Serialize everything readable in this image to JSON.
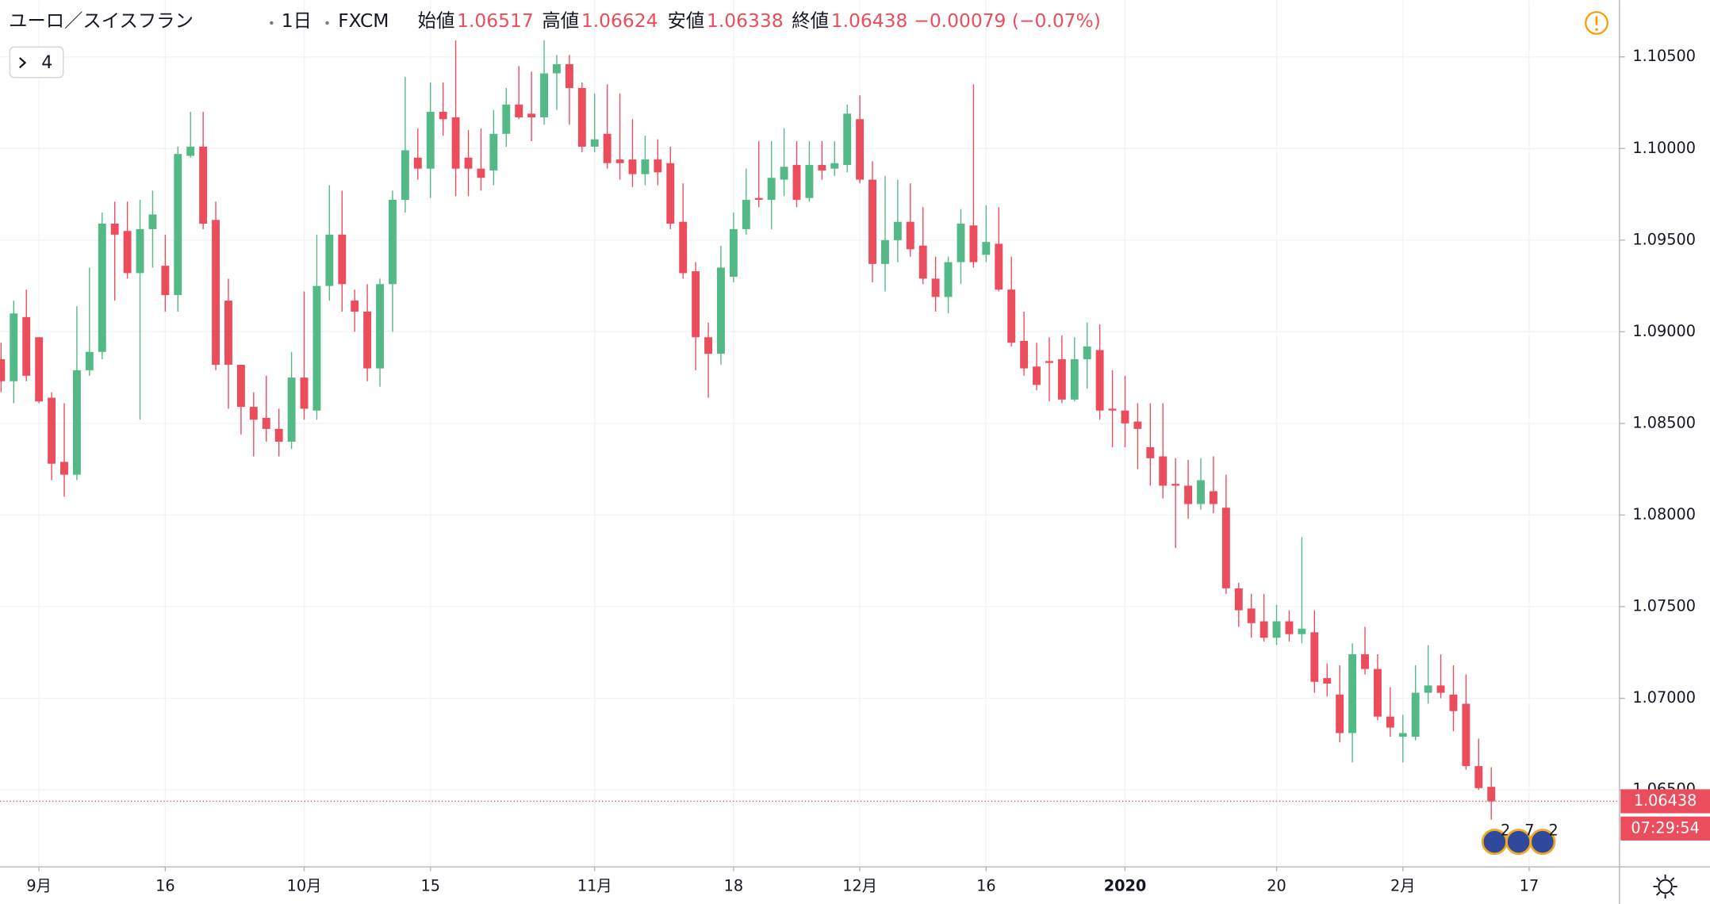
{
  "chart_data": {
    "type": "candlestick",
    "symbol": "ユーロ／スイスフラン",
    "interval": "1日",
    "source": "FXCM",
    "ohlc_labels": [
      "始値",
      "高値",
      "安値",
      "終値"
    ],
    "change_label": "−0.00079 (−0.07%)",
    "indicators_count": 4,
    "countdown": "07:29:54",
    "events": [
      "2",
      "7",
      "2"
    ],
    "up_color": "#53b987",
    "down_color": "#eb4d5c",
    "grid": true,
    "ylim": [
      1.0608,
      1.1081
    ],
    "yticks": [
      {
        "value": 1.105,
        "label": "1.10500"
      },
      {
        "value": 1.1,
        "label": "1.10000"
      },
      {
        "value": 1.095,
        "label": "1.09500"
      },
      {
        "value": 1.09,
        "label": "1.09000"
      },
      {
        "value": 1.085,
        "label": "1.08500"
      },
      {
        "value": 1.08,
        "label": "1.08000"
      },
      {
        "value": 1.075,
        "label": "1.07500"
      },
      {
        "value": 1.07,
        "label": "1.07000"
      },
      {
        "value": 1.065,
        "label": "1.06500"
      }
    ],
    "categories": [
      null,
      null,
      null,
      "9月",
      null,
      null,
      null,
      null,
      null,
      null,
      null,
      null,
      null,
      "16",
      null,
      null,
      null,
      null,
      null,
      null,
      null,
      null,
      null,
      null,
      "10月",
      null,
      null,
      null,
      null,
      null,
      null,
      null,
      null,
      null,
      "15",
      null,
      null,
      null,
      null,
      null,
      null,
      null,
      null,
      null,
      null,
      null,
      null,
      "11月",
      null,
      null,
      null,
      null,
      null,
      null,
      null,
      null,
      null,
      null,
      "18",
      null,
      null,
      null,
      null,
      null,
      null,
      null,
      null,
      null,
      "12月",
      null,
      null,
      null,
      null,
      null,
      null,
      null,
      null,
      null,
      "16",
      null,
      null,
      null,
      null,
      null,
      null,
      null,
      null,
      null,
      null,
      "2020",
      null,
      null,
      null,
      null,
      null,
      null,
      null,
      null,
      null,
      null,
      null,
      "20",
      null,
      null,
      null,
      null,
      null,
      null,
      null,
      null,
      null,
      "2月",
      null,
      null,
      null,
      null,
      null,
      null,
      null,
      null,
      null,
      "17",
      null,
      null,
      null,
      null,
      null,
      null,
      null
    ],
    "open": [
      1.0885,
      1.0873,
      1.0908,
      1.0897,
      1.0864,
      1.0829,
      1.0822,
      1.0879,
      1.0889,
      1.0959,
      1.0955,
      1.0932,
      1.0956,
      1.0936,
      1.092,
      1.0996,
      1.1001,
      1.0961,
      1.0917,
      1.0882,
      1.0859,
      1.0853,
      1.0847,
      1.084,
      1.0875,
      1.0857,
      1.0925,
      1.0953,
      1.0917,
      1.0911,
      1.088,
      1.0926,
      1.0972,
      1.0995,
      1.0989,
      1.102,
      1.1017,
      1.0995,
      1.0989,
      1.0988,
      1.1008,
      1.1024,
      1.1019,
      1.1017,
      1.1041,
      1.1046,
      1.1033,
      1.1001,
      1.1008,
      1.0994,
      1.0994,
      1.0986,
      1.0994,
      1.0992,
      1.096,
      1.0933,
      1.0897,
      1.0888,
      1.093,
      1.0956,
      1.0973,
      1.0972,
      1.0983,
      1.0991,
      1.0973,
      1.0991,
      1.0989,
      1.0991,
      1.1016,
      1.0983,
      1.0937,
      1.095,
      1.096,
      1.0947,
      1.0929,
      1.0919,
      1.0938,
      1.0958,
      1.0942,
      1.0948,
      1.0923,
      1.0895,
      1.0881,
      1.0884,
      1.0885,
      1.0863,
      1.0885,
      1.089,
      1.0858,
      1.0857,
      1.0851,
      1.0837,
      1.0832,
      1.0817,
      1.0816,
      1.0806,
      1.0813,
      1.0804,
      1.076,
      1.0749,
      1.0742,
      1.0733,
      1.0742,
      1.0735,
      1.0736,
      1.0711,
      1.0702,
      1.0681,
      1.0724,
      1.0716,
      1.069,
      1.0679,
      1.0679,
      1.0703,
      1.0707,
      1.0702,
      1.0697,
      1.0663,
      1.06517,
      null,
      null,
      null,
      null,
      null,
      null,
      null,
      null,
      null,
      null
    ],
    "high": [
      1.0894,
      1.0917,
      1.0923,
      1.0897,
      1.0867,
      1.0861,
      1.0914,
      1.0935,
      1.0965,
      1.0971,
      1.0971,
      1.0972,
      1.0977,
      1.0953,
      1.1001,
      1.102,
      1.102,
      1.0971,
      1.0929,
      1.0882,
      1.0867,
      1.0876,
      1.0858,
      1.0889,
      1.0922,
      1.0953,
      1.098,
      1.0977,
      1.0923,
      1.0926,
      1.0929,
      1.0977,
      1.1039,
      1.1011,
      1.1036,
      1.1036,
      1.1059,
      1.101,
      1.1011,
      1.1021,
      1.1033,
      1.1045,
      1.1042,
      1.1059,
      1.1051,
      1.1051,
      1.1036,
      1.103,
      1.1035,
      1.103,
      1.1016,
      1.1007,
      1.1005,
      1.1001,
      1.0981,
      1.0938,
      1.0905,
      1.0947,
      1.0965,
      1.0989,
      1.1004,
      1.1004,
      1.1011,
      1.1004,
      1.1004,
      1.1004,
      1.1004,
      1.1024,
      1.1029,
      1.0993,
      1.0985,
      1.0983,
      1.0981,
      1.0968,
      1.0941,
      1.0941,
      1.0967,
      1.1035,
      1.0969,
      1.0968,
      1.0941,
      1.0911,
      1.0894,
      1.0897,
      1.0898,
      1.0897,
      1.0905,
      1.0904,
      1.0879,
      1.0876,
      1.0861,
      1.0861,
      1.0861,
      1.0831,
      1.083,
      1.0831,
      1.0832,
      1.0822,
      1.0763,
      1.0757,
      1.0757,
      1.0751,
      1.0748,
      1.0788,
      1.0748,
      1.0719,
      1.0718,
      1.073,
      1.0739,
      1.0724,
      1.0706,
      1.0691,
      1.0718,
      1.0729,
      1.0724,
      1.0718,
      1.0713,
      1.0678,
      1.06624,
      null,
      null,
      null,
      null,
      null,
      null,
      null,
      null,
      null,
      null
    ],
    "low": [
      1.0867,
      1.0861,
      1.0873,
      1.0861,
      1.0819,
      1.081,
      1.0819,
      1.0876,
      1.0885,
      1.0917,
      1.0929,
      1.0852,
      1.0935,
      1.0911,
      1.0911,
      1.0995,
      1.0956,
      1.0879,
      1.0858,
      1.0844,
      1.0832,
      1.084,
      1.0832,
      1.0836,
      1.0852,
      1.0852,
      1.0917,
      1.0911,
      1.09,
      1.0873,
      1.087,
      1.09,
      1.0965,
      1.0983,
      1.0973,
      1.1007,
      1.0974,
      1.0974,
      1.0977,
      1.098,
      1.1001,
      1.1016,
      1.1004,
      1.1013,
      1.1021,
      1.1013,
      1.0998,
      1.0998,
      1.0989,
      1.0983,
      1.0979,
      1.098,
      1.098,
      1.0956,
      1.0929,
      1.0879,
      1.0864,
      1.0882,
      1.0927,
      1.0953,
      1.0968,
      1.0956,
      1.0974,
      1.0968,
      1.0971,
      1.0983,
      1.0985,
      1.0987,
      1.0981,
      1.0927,
      1.0922,
      1.0938,
      1.0941,
      1.0926,
      1.0911,
      1.091,
      1.0926,
      1.0935,
      1.0938,
      1.0922,
      1.0892,
      1.0876,
      1.0868,
      1.0862,
      1.0861,
      1.0862,
      1.0869,
      1.0852,
      1.0837,
      1.0837,
      1.0825,
      1.0816,
      1.0809,
      1.0782,
      1.0798,
      1.0803,
      1.0801,
      1.0757,
      1.0739,
      1.0733,
      1.0731,
      1.0729,
      1.0731,
      1.073,
      1.0703,
      1.0701,
      1.0676,
      1.0665,
      1.0713,
      1.0688,
      1.0679,
      1.0665,
      1.0677,
      1.0697,
      1.07,
      1.0682,
      1.0661,
      1.065,
      1.06338,
      null,
      null,
      null,
      null,
      null,
      null,
      null,
      null,
      null,
      null
    ],
    "close": [
      1.0873,
      1.091,
      1.0876,
      1.0862,
      1.0828,
      1.0822,
      1.0879,
      1.0889,
      1.0959,
      1.0953,
      1.0932,
      1.0956,
      1.0964,
      1.092,
      1.0997,
      1.1001,
      1.0959,
      1.0882,
      1.0882,
      1.0859,
      1.0852,
      1.0847,
      1.084,
      1.0875,
      1.0858,
      1.0925,
      1.0953,
      1.0926,
      1.0911,
      1.088,
      1.0926,
      1.0972,
      1.0999,
      1.0989,
      1.102,
      1.1016,
      1.0989,
      1.0989,
      1.0984,
      1.1008,
      1.1024,
      1.1017,
      1.1017,
      1.1041,
      1.1046,
      1.1033,
      1.1001,
      1.1005,
      1.0992,
      1.0992,
      1.0986,
      1.0994,
      1.0987,
      1.0959,
      1.0932,
      1.0897,
      1.0888,
      1.0935,
      1.0956,
      1.0972,
      1.0972,
      1.0984,
      1.099,
      1.0972,
      1.0991,
      1.0988,
      1.0992,
      1.1019,
      1.0983,
      1.0937,
      1.095,
      1.096,
      1.0945,
      1.0929,
      1.0919,
      1.0938,
      1.0959,
      1.0938,
      1.0949,
      1.0923,
      1.0894,
      1.088,
      1.0871,
      1.0883,
      1.0863,
      1.0885,
      1.0892,
      1.0857,
      1.0857,
      1.085,
      1.0847,
      1.0831,
      1.0816,
      1.0816,
      1.0806,
      1.0819,
      1.0806,
      1.076,
      1.0748,
      1.0741,
      1.0733,
      1.0742,
      1.0735,
      1.0738,
      1.0709,
      1.0708,
      1.0681,
      1.0724,
      1.0716,
      1.069,
      1.0684,
      1.0681,
      1.0703,
      1.0707,
      1.0703,
      1.0693,
      1.0663,
      1.0651,
      1.06438,
      null,
      null,
      null,
      null,
      null,
      null,
      null,
      null,
      null,
      null
    ]
  }
}
